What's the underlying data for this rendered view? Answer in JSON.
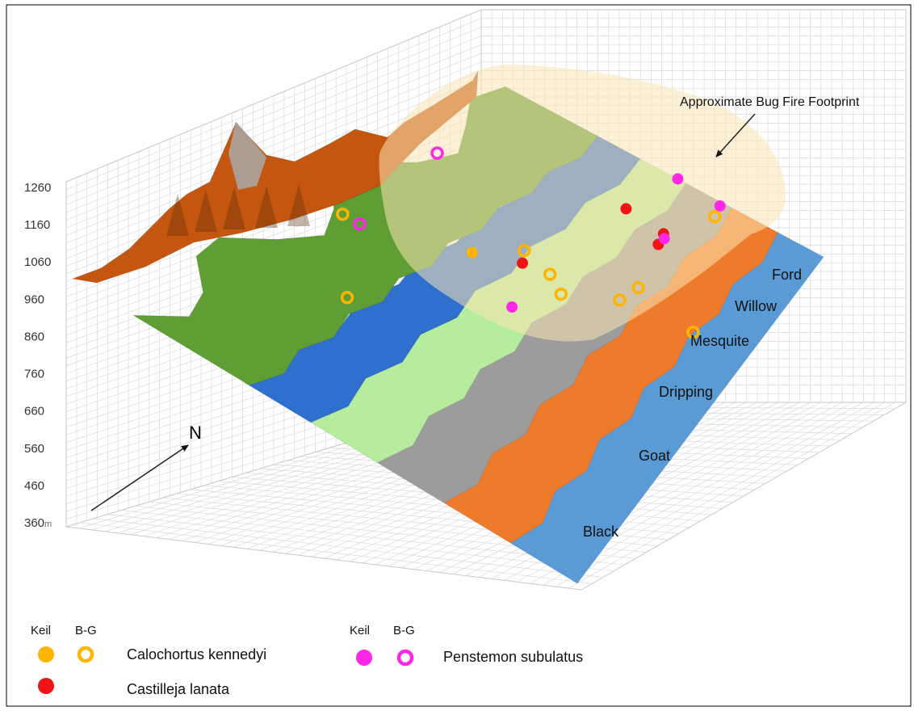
{
  "chart_data": {
    "type": "surface",
    "title": "",
    "z_unit": "m",
    "z_ticks": [
      360,
      460,
      560,
      660,
      760,
      860,
      960,
      1060,
      1160,
      1260
    ],
    "zlim": [
      360,
      1260
    ],
    "north_label": "N",
    "footprint_label": "Approximate Bug Fire Footprint",
    "canyons": [
      "Black",
      "Goat",
      "Dripping",
      "Mesquite",
      "Willow",
      "Ford"
    ],
    "band_colors": [
      "#2f6fce",
      "#b5ec9e",
      "#9c9c9c",
      "#ee7a2c",
      "#5b9bd5"
    ],
    "ridge_colors": [
      "#c5560f",
      "#5f9e35",
      "#a8a8a8"
    ],
    "footprint_color": "#fae5b4",
    "legend": {
      "source_keil": "Keil",
      "source_bg": "B-G",
      "species": [
        {
          "name": "Calochortus kennedyi",
          "color": "#ffb400"
        },
        {
          "name": "Castilleja lanata",
          "color": "#f01414"
        },
        {
          "name": "Penstemon subulatus",
          "color": "#ff28e6"
        }
      ]
    },
    "markers": [
      {
        "species": "Calochortus kennedyi",
        "source": "Keil",
        "u": 0.4,
        "v": 0.58
      },
      {
        "species": "Calochortus kennedyi",
        "source": "B-G",
        "u": 0.72,
        "v": 0.96
      },
      {
        "species": "Calochortus kennedyi",
        "source": "B-G",
        "u": 0.71,
        "v": 0.71
      },
      {
        "species": "Calochortus kennedyi",
        "source": "B-G",
        "u": 0.47,
        "v": 0.65
      },
      {
        "species": "Calochortus kennedyi",
        "source": "B-G",
        "u": 0.16,
        "v": 0.5
      },
      {
        "species": "Calochortus kennedyi",
        "source": "B-G",
        "u": 0.55,
        "v": 0.63
      },
      {
        "species": "Calochortus kennedyi",
        "source": "B-G",
        "u": 0.6,
        "v": 0.6
      },
      {
        "species": "Calochortus kennedyi",
        "source": "B-G",
        "u": 0.7,
        "v": 0.66
      },
      {
        "species": "Calochortus kennedyi",
        "source": "B-G",
        "u": 0.87,
        "v": 0.68
      },
      {
        "species": "Calochortus kennedyi",
        "source": "B-G",
        "u": 0.32,
        "v": 0.32
      },
      {
        "species": "Castilleja lanata",
        "source": "Keil",
        "u": 0.55,
        "v": 0.87
      },
      {
        "species": "Castilleja lanata",
        "source": "Keil",
        "u": 0.66,
        "v": 0.86
      },
      {
        "species": "Castilleja lanata",
        "source": "Keil",
        "u": 0.67,
        "v": 0.83
      },
      {
        "species": "Castilleja lanata",
        "source": "Keil",
        "u": 0.49,
        "v": 0.62
      },
      {
        "species": "Penstemon subulatus",
        "source": "Keil",
        "u": 0.58,
        "v": 1.0
      },
      {
        "species": "Penstemon subulatus",
        "source": "Keil",
        "u": 0.71,
        "v": 0.99
      },
      {
        "species": "Penstemon subulatus",
        "source": "Keil",
        "u": 0.67,
        "v": 0.85
      },
      {
        "species": "Penstemon subulatus",
        "source": "Keil",
        "u": 0.55,
        "v": 0.51
      },
      {
        "species": "Penstemon subulatus",
        "source": "B-G",
        "u": 0.15,
        "v": 0.76
      },
      {
        "species": "Penstemon subulatus",
        "source": "B-G",
        "u": 0.2,
        "v": 0.5
      }
    ]
  }
}
